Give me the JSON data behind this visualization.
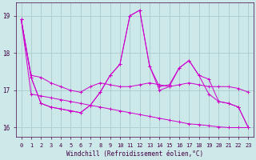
{
  "xlabel": "Windchill (Refroidissement éolien,°C)",
  "background_color": "#cce8e8",
  "grid_color": "#aacccc",
  "line_color": "#cc00cc",
  "xlim": [
    -0.5,
    23.5
  ],
  "ylim": [
    15.75,
    19.35
  ],
  "yticks": [
    16,
    17,
    18,
    19
  ],
  "xticks": [
    0,
    1,
    2,
    3,
    4,
    5,
    6,
    7,
    8,
    9,
    10,
    11,
    12,
    13,
    14,
    15,
    16,
    17,
    18,
    19,
    20,
    21,
    22,
    23
  ],
  "series": [
    {
      "x": [
        0,
        1,
        2,
        3,
        4,
        5,
        6,
        7,
        8,
        9,
        10,
        11,
        12,
        13,
        14,
        15,
        16,
        17,
        18,
        19,
        20,
        21,
        22,
        23
      ],
      "y": [
        18.9,
        17.4,
        17.35,
        17.2,
        17.1,
        17.0,
        16.95,
        17.1,
        17.2,
        17.15,
        17.1,
        17.1,
        17.15,
        17.2,
        17.15,
        17.1,
        17.15,
        17.2,
        17.15,
        17.1,
        17.1,
        17.1,
        17.05,
        16.95
      ]
    },
    {
      "x": [
        0,
        1,
        2,
        3,
        4,
        5,
        6,
        7,
        8,
        9,
        10,
        11,
        12,
        13,
        14,
        15,
        16,
        17,
        18,
        19,
        20,
        21,
        22,
        23
      ],
      "y": [
        18.9,
        17.35,
        16.65,
        16.55,
        16.5,
        16.45,
        16.4,
        16.6,
        16.95,
        17.4,
        17.7,
        19.0,
        19.15,
        17.65,
        17.0,
        17.1,
        17.6,
        17.8,
        17.4,
        17.3,
        16.7,
        16.65,
        16.55,
        16.0
      ]
    },
    {
      "x": [
        0,
        1,
        2,
        3,
        4,
        5,
        6,
        7,
        8,
        9,
        10,
        11,
        12,
        13,
        14,
        15,
        16,
        17,
        18,
        19,
        20,
        21,
        22,
        23
      ],
      "y": [
        18.9,
        17.35,
        16.65,
        16.55,
        16.5,
        16.45,
        16.4,
        16.6,
        16.95,
        17.4,
        17.7,
        19.0,
        19.15,
        17.65,
        17.1,
        17.15,
        17.6,
        17.8,
        17.4,
        16.9,
        16.7,
        16.65,
        16.55,
        16.0
      ]
    },
    {
      "x": [
        0,
        1,
        2,
        3,
        4,
        5,
        6,
        7,
        8,
        9,
        10,
        11,
        12,
        13,
        14,
        15,
        16,
        17,
        18,
        19,
        20,
        21,
        22,
        23
      ],
      "y": [
        18.9,
        16.9,
        16.85,
        16.8,
        16.75,
        16.7,
        16.65,
        16.6,
        16.55,
        16.5,
        16.45,
        16.4,
        16.35,
        16.3,
        16.25,
        16.2,
        16.15,
        16.1,
        16.08,
        16.05,
        16.02,
        16.0,
        16.0,
        16.0
      ]
    }
  ]
}
